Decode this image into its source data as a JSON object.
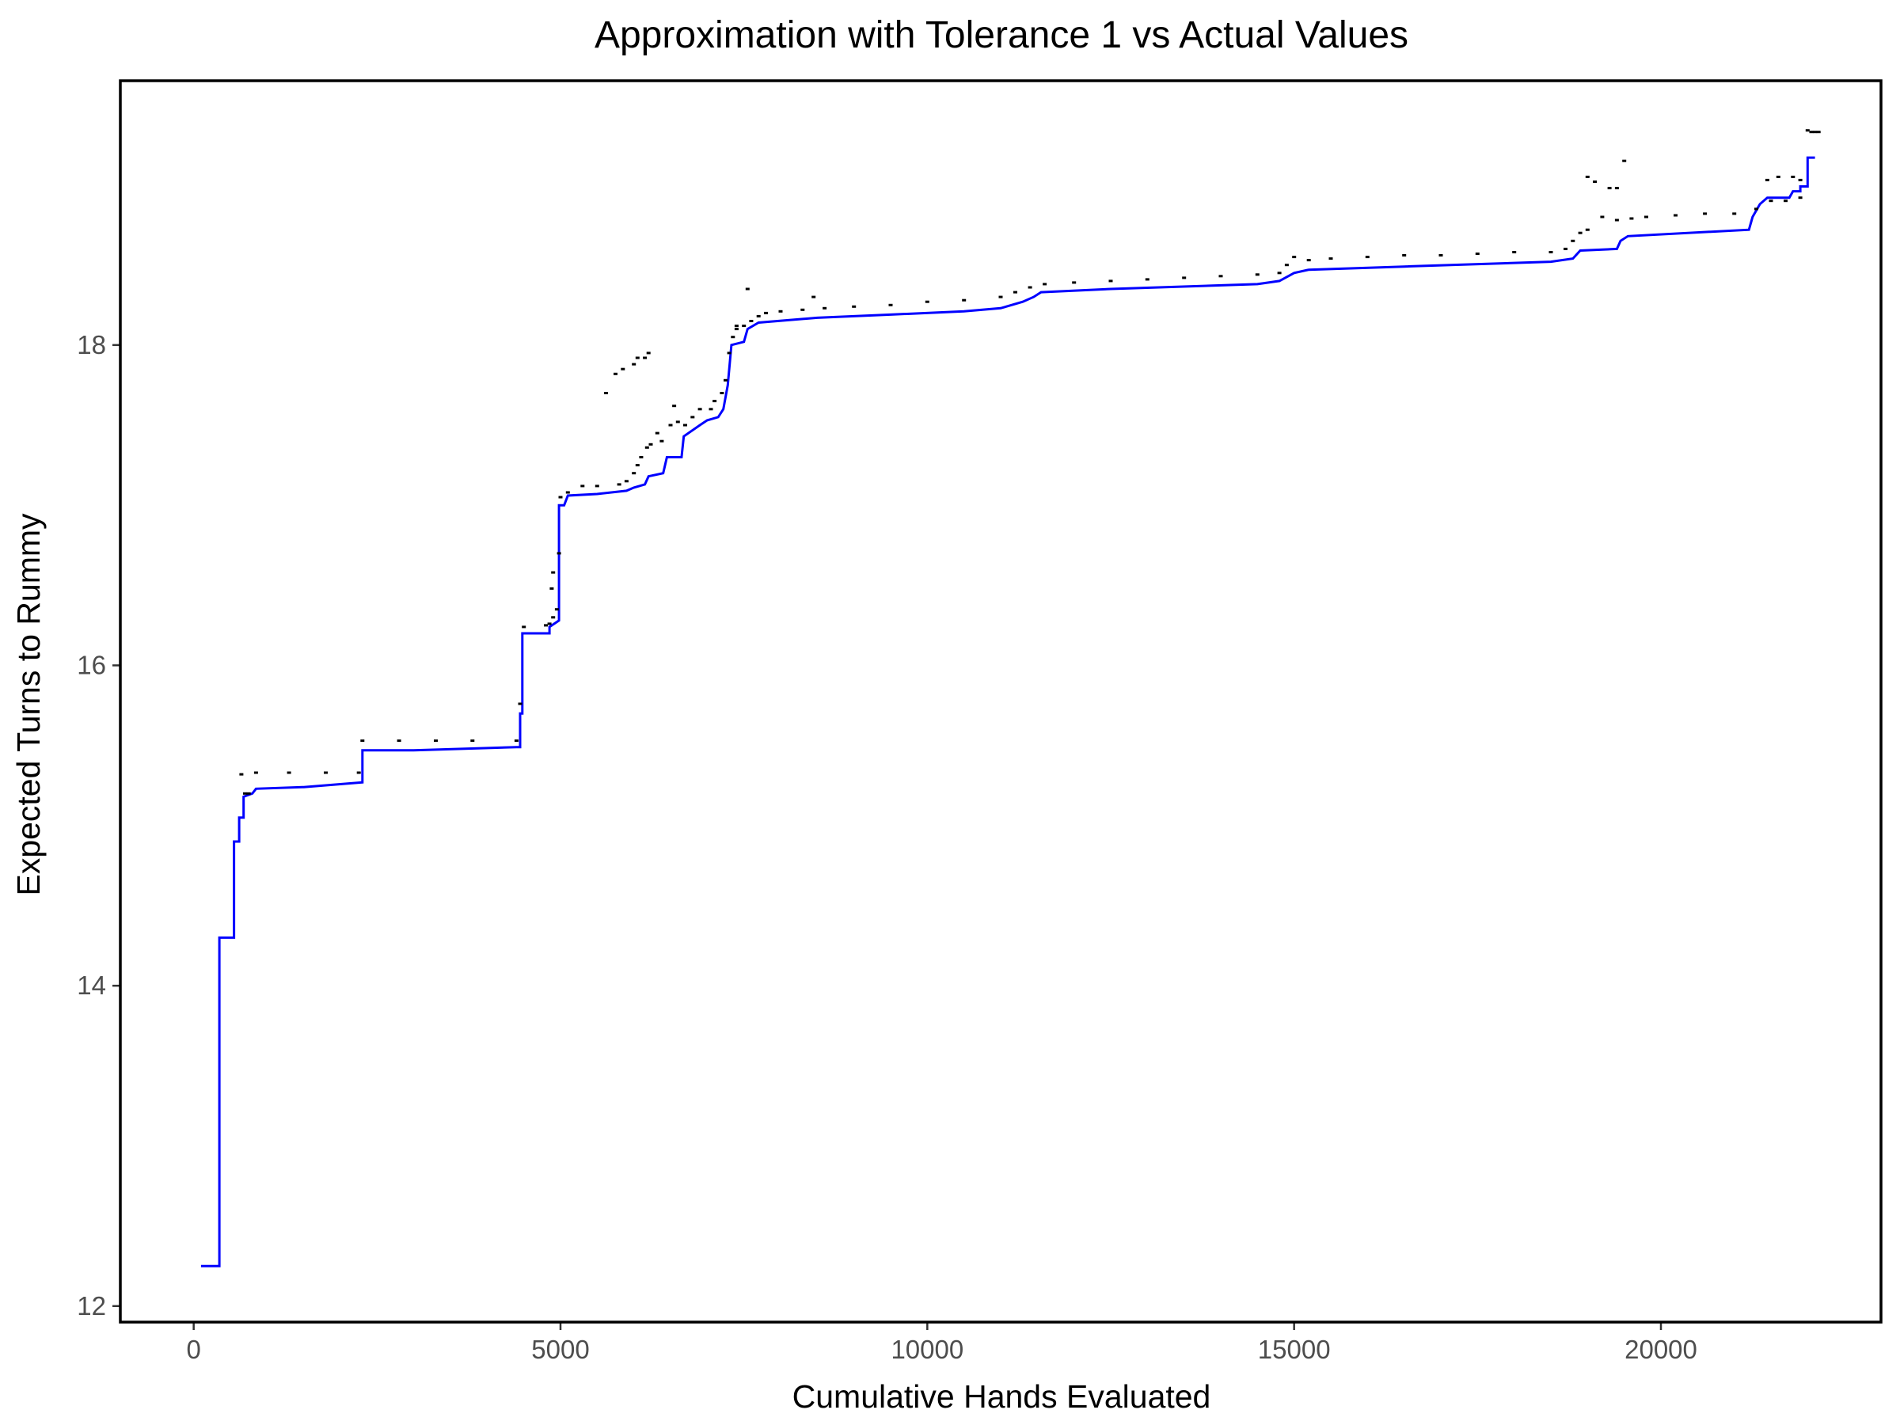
{
  "chart_data": {
    "type": "line",
    "title": "Approximation with Tolerance 1 vs Actual Values",
    "xlabel": "Cumulative Hands Evaluated",
    "ylabel": "Expected Turns to Rummy",
    "xlim": [
      -1000,
      23000
    ],
    "ylim": [
      11.9,
      19.65
    ],
    "x_ticks": [
      0,
      5000,
      10000,
      15000,
      20000
    ],
    "x_tick_labels": [
      "0",
      "5000",
      "10000",
      "15000",
      "20000"
    ],
    "y_ticks": [
      12,
      14,
      16,
      18
    ],
    "y_tick_labels": [
      "12",
      "14",
      "16",
      "18"
    ],
    "grid": false,
    "legend": "none",
    "series": [
      {
        "color": "#0000ff",
        "style": "step-line",
        "points": [
          [
            100,
            12.25
          ],
          [
            350,
            12.25
          ],
          [
            350,
            14.3
          ],
          [
            550,
            14.3
          ],
          [
            550,
            14.9
          ],
          [
            620,
            14.9
          ],
          [
            620,
            15.05
          ],
          [
            680,
            15.05
          ],
          [
            680,
            15.18
          ],
          [
            800,
            15.2
          ],
          [
            850,
            15.23
          ],
          [
            1500,
            15.24
          ],
          [
            2300,
            15.27
          ],
          [
            2300,
            15.47
          ],
          [
            3000,
            15.47
          ],
          [
            4400,
            15.49
          ],
          [
            4450,
            15.49
          ],
          [
            4450,
            15.7
          ],
          [
            4480,
            15.7
          ],
          [
            4480,
            16.2
          ],
          [
            4850,
            16.2
          ],
          [
            4850,
            16.24
          ],
          [
            4980,
            16.28
          ],
          [
            4980,
            17.0
          ],
          [
            5050,
            17.0
          ],
          [
            5100,
            17.06
          ],
          [
            5500,
            17.07
          ],
          [
            5900,
            17.09
          ],
          [
            6000,
            17.11
          ],
          [
            6150,
            17.13
          ],
          [
            6200,
            17.18
          ],
          [
            6400,
            17.2
          ],
          [
            6450,
            17.3
          ],
          [
            6650,
            17.3
          ],
          [
            6680,
            17.43
          ],
          [
            6900,
            17.5
          ],
          [
            7000,
            17.53
          ],
          [
            7150,
            17.55
          ],
          [
            7220,
            17.6
          ],
          [
            7280,
            17.75
          ],
          [
            7330,
            18.0
          ],
          [
            7500,
            18.02
          ],
          [
            7550,
            18.1
          ],
          [
            7700,
            18.14
          ],
          [
            8500,
            18.17
          ],
          [
            9500,
            18.19
          ],
          [
            10500,
            18.21
          ],
          [
            11000,
            18.23
          ],
          [
            11300,
            18.27
          ],
          [
            11450,
            18.3
          ],
          [
            11550,
            18.33
          ],
          [
            12500,
            18.35
          ],
          [
            14500,
            18.38
          ],
          [
            14800,
            18.4
          ],
          [
            15000,
            18.45
          ],
          [
            15200,
            18.47
          ],
          [
            16500,
            18.49
          ],
          [
            18500,
            18.52
          ],
          [
            18800,
            18.54
          ],
          [
            18900,
            18.59
          ],
          [
            19400,
            18.6
          ],
          [
            19450,
            18.65
          ],
          [
            19550,
            18.68
          ],
          [
            21200,
            18.72
          ],
          [
            21250,
            18.8
          ],
          [
            21350,
            18.88
          ],
          [
            21450,
            18.92
          ],
          [
            21750,
            18.92
          ],
          [
            21800,
            18.96
          ],
          [
            21900,
            18.96
          ],
          [
            21900,
            18.99
          ],
          [
            22000,
            18.99
          ],
          [
            22000,
            19.17
          ],
          [
            22100,
            19.17
          ]
        ]
      },
      {
        "color": "#000000",
        "style": "points",
        "points": [
          [
            650,
            15.32
          ],
          [
            700,
            15.2
          ],
          [
            750,
            15.2
          ],
          [
            850,
            15.33
          ],
          [
            1300,
            15.33
          ],
          [
            1800,
            15.33
          ],
          [
            2250,
            15.33
          ],
          [
            2300,
            15.53
          ],
          [
            2800,
            15.53
          ],
          [
            3300,
            15.53
          ],
          [
            3800,
            15.53
          ],
          [
            4400,
            15.53
          ],
          [
            4450,
            15.76
          ],
          [
            4500,
            16.24
          ],
          [
            4800,
            16.25
          ],
          [
            4850,
            16.26
          ],
          [
            4900,
            16.3
          ],
          [
            4950,
            16.35
          ],
          [
            4880,
            16.48
          ],
          [
            4900,
            16.58
          ],
          [
            4980,
            16.7
          ],
          [
            5000,
            17.05
          ],
          [
            5100,
            17.08
          ],
          [
            5300,
            17.12
          ],
          [
            5500,
            17.12
          ],
          [
            5800,
            17.13
          ],
          [
            5900,
            17.15
          ],
          [
            6000,
            17.2
          ],
          [
            6050,
            17.25
          ],
          [
            6100,
            17.3
          ],
          [
            6180,
            17.36
          ],
          [
            6230,
            17.38
          ],
          [
            6320,
            17.45
          ],
          [
            6380,
            17.4
          ],
          [
            6500,
            17.5
          ],
          [
            6600,
            17.52
          ],
          [
            6700,
            17.5
          ],
          [
            6800,
            17.55
          ],
          [
            6900,
            17.6
          ],
          [
            7050,
            17.6
          ],
          [
            7100,
            17.65
          ],
          [
            7200,
            17.7
          ],
          [
            7250,
            17.78
          ],
          [
            7300,
            17.95
          ],
          [
            7350,
            18.05
          ],
          [
            7400,
            18.1
          ],
          [
            7500,
            18.12
          ],
          [
            7600,
            18.15
          ],
          [
            7700,
            18.18
          ],
          [
            7800,
            18.2
          ],
          [
            8000,
            18.21
          ],
          [
            8300,
            18.22
          ],
          [
            8600,
            18.23
          ],
          [
            9000,
            18.24
          ],
          [
            9500,
            18.25
          ],
          [
            10000,
            18.27
          ],
          [
            10500,
            18.28
          ],
          [
            11000,
            18.3
          ],
          [
            11200,
            18.33
          ],
          [
            11400,
            18.36
          ],
          [
            11600,
            18.38
          ],
          [
            12000,
            18.39
          ],
          [
            12500,
            18.4
          ],
          [
            13000,
            18.41
          ],
          [
            13500,
            18.42
          ],
          [
            14000,
            18.43
          ],
          [
            14500,
            18.44
          ],
          [
            14800,
            18.45
          ],
          [
            14900,
            18.5
          ],
          [
            15000,
            18.55
          ],
          [
            15200,
            18.53
          ],
          [
            15500,
            18.54
          ],
          [
            16000,
            18.55
          ],
          [
            16500,
            18.56
          ],
          [
            17000,
            18.56
          ],
          [
            17500,
            18.57
          ],
          [
            18000,
            18.58
          ],
          [
            18500,
            18.58
          ],
          [
            18700,
            18.6
          ],
          [
            18800,
            18.65
          ],
          [
            18900,
            18.7
          ],
          [
            19000,
            18.72
          ],
          [
            19200,
            18.8
          ],
          [
            19400,
            18.78
          ],
          [
            19600,
            18.79
          ],
          [
            19800,
            18.8
          ],
          [
            20200,
            18.81
          ],
          [
            20600,
            18.82
          ],
          [
            21000,
            18.82
          ],
          [
            21300,
            18.85
          ],
          [
            21500,
            18.9
          ],
          [
            21700,
            18.9
          ],
          [
            21900,
            18.92
          ],
          [
            22050,
            19.33
          ],
          [
            22150,
            19.33
          ],
          [
            5620,
            17.7
          ],
          [
            5750,
            17.82
          ],
          [
            5850,
            17.85
          ],
          [
            6000,
            17.88
          ],
          [
            6050,
            17.92
          ],
          [
            6150,
            17.92
          ],
          [
            6200,
            17.95
          ],
          [
            7550,
            18.35
          ],
          [
            7400,
            18.12
          ],
          [
            6700,
            17.5
          ],
          [
            6550,
            17.62
          ],
          [
            8450,
            18.3
          ],
          [
            19000,
            19.05
          ],
          [
            19100,
            19.02
          ],
          [
            19300,
            18.98
          ],
          [
            19400,
            18.98
          ],
          [
            19500,
            19.15
          ],
          [
            21450,
            19.03
          ],
          [
            21600,
            19.05
          ],
          [
            21800,
            19.05
          ],
          [
            21900,
            19.03
          ],
          [
            22000,
            19.34
          ],
          [
            22100,
            19.33
          ]
        ]
      }
    ]
  }
}
